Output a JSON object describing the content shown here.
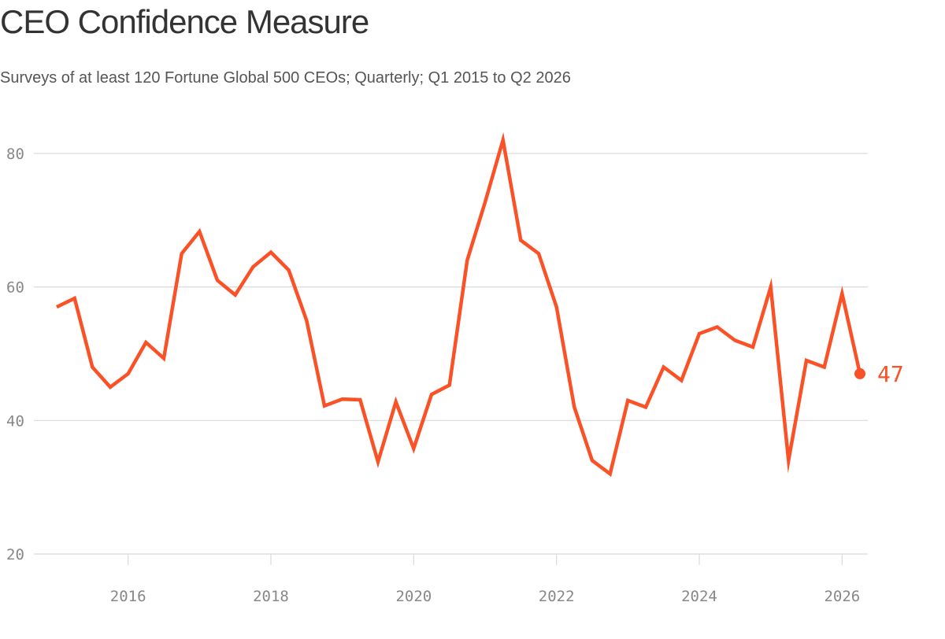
{
  "title": "CEO Confidence Measure",
  "subtitle": "Surveys of at least 120 Fortune Global 500 CEOs; Quarterly; Q1 2015 to Q2 2026",
  "colors": {
    "line": "#fa5127",
    "grid": "#d9d9d9",
    "tick": "#888888",
    "title": "#333333"
  },
  "chart_data": {
    "type": "line",
    "title": "CEO Confidence Measure",
    "subtitle": "Surveys of at least 120 Fortune Global 500 CEOs; Quarterly; Q1 2015 to Q2 2026",
    "xlabel": "",
    "ylabel": "",
    "xlim": [
      2015,
      2026.25
    ],
    "ylim": [
      20,
      82
    ],
    "yticks": [
      20,
      40,
      60,
      80
    ],
    "xticks": [
      2016,
      2018,
      2020,
      2022,
      2024,
      2026
    ],
    "grid": "horizontal",
    "end_label": "47",
    "series": [
      {
        "x": [
          "2015 Q1",
          "2015 Q2",
          "2015 Q3",
          "2015 Q4",
          "2016 Q1",
          "2016 Q2",
          "2016 Q3",
          "2016 Q4",
          "2017 Q1",
          "2017 Q2",
          "2017 Q3",
          "2017 Q4",
          "2018 Q1",
          "2018 Q2",
          "2018 Q3",
          "2018 Q4",
          "2019 Q1",
          "2019 Q2",
          "2019 Q3",
          "2019 Q4",
          "2020 Q1",
          "2020 Q2",
          "2020 Q3",
          "2020 Q4",
          "2021 Q1",
          "2021 Q2",
          "2021 Q3",
          "2021 Q4",
          "2022 Q1",
          "2022 Q2",
          "2022 Q3",
          "2022 Q4",
          "2023 Q1",
          "2023 Q2",
          "2023 Q3",
          "2023 Q4",
          "2024 Q1",
          "2024 Q2",
          "2024 Q3",
          "2024 Q4",
          "2025 Q1",
          "2025 Q2",
          "2025 Q3",
          "2025 Q4",
          "2026 Q1",
          "2026 Q2"
        ],
        "values": [
          57,
          58.3,
          48,
          45,
          47,
          51.7,
          49.3,
          65,
          68.3,
          61,
          58.8,
          63,
          65.2,
          62.5,
          55,
          42.2,
          43.2,
          43.1,
          33.8,
          42.8,
          35.8,
          43.9,
          45.3,
          64,
          72.7,
          82,
          67,
          65,
          57,
          42,
          34,
          32,
          43,
          42,
          48,
          46,
          53,
          54,
          52,
          51,
          60,
          34,
          49,
          48,
          59,
          47
        ]
      }
    ]
  }
}
